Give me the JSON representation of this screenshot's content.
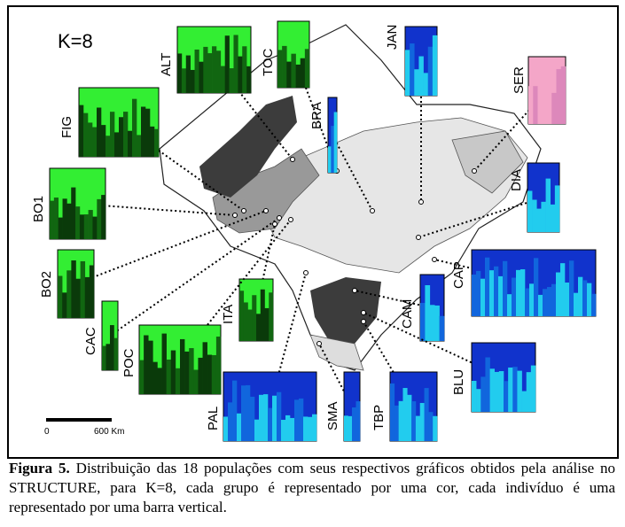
{
  "figure": {
    "k_label": "K=8",
    "populations": [
      "ALT",
      "TOC",
      "JAN",
      "SER",
      "FIG",
      "BRA",
      "DIA",
      "BO1",
      "BO2",
      "CAP",
      "CAM",
      "ITA",
      "CAC",
      "POC",
      "BLU",
      "PAL",
      "SMA",
      "TBP"
    ],
    "scale": {
      "start": "0",
      "end": "600 Km"
    }
  },
  "caption": {
    "label": "Figura 5.",
    "text": "Distribuição das 18 populações com seus respectivos gráficos obtidos pela análise no STRUCTURE, para K=8, cada grupo é representado por uma cor, cada indivíduo é uma representado por uma barra vertical."
  }
}
